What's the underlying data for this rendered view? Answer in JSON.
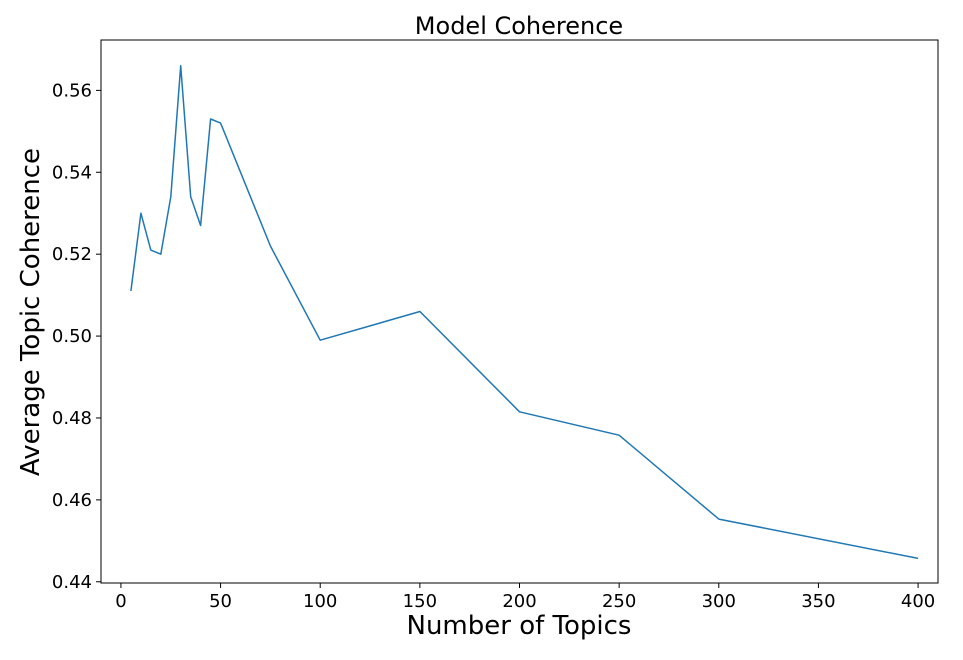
{
  "chart_data": {
    "type": "line",
    "title": "Model Coherence",
    "xlabel": "Number of Topics",
    "ylabel": "Average Topic Coherence",
    "xlim": [
      -10,
      410
    ],
    "ylim": [
      0.4397,
      0.5723
    ],
    "xticks": [
      0,
      50,
      100,
      150,
      200,
      250,
      300,
      350,
      400
    ],
    "yticks": [
      0.44,
      0.46,
      0.48,
      0.5,
      0.52,
      0.54,
      0.56
    ],
    "xtick_labels": [
      "0",
      "50",
      "100",
      "150",
      "200",
      "250",
      "300",
      "350",
      "400"
    ],
    "ytick_labels": [
      "0.44",
      "0.46",
      "0.48",
      "0.50",
      "0.52",
      "0.54",
      "0.56"
    ],
    "grid": false,
    "series": [
      {
        "color": "#1f77b4",
        "x": [
          5,
          10,
          15,
          20,
          25,
          30,
          35,
          40,
          45,
          50,
          75,
          100,
          150,
          200,
          250,
          300,
          400
        ],
        "y": [
          0.511,
          0.53,
          0.521,
          0.52,
          0.534,
          0.566,
          0.534,
          0.527,
          0.553,
          0.552,
          0.522,
          0.499,
          0.506,
          0.4815,
          0.4758,
          0.4553,
          0.4457
        ]
      }
    ]
  }
}
